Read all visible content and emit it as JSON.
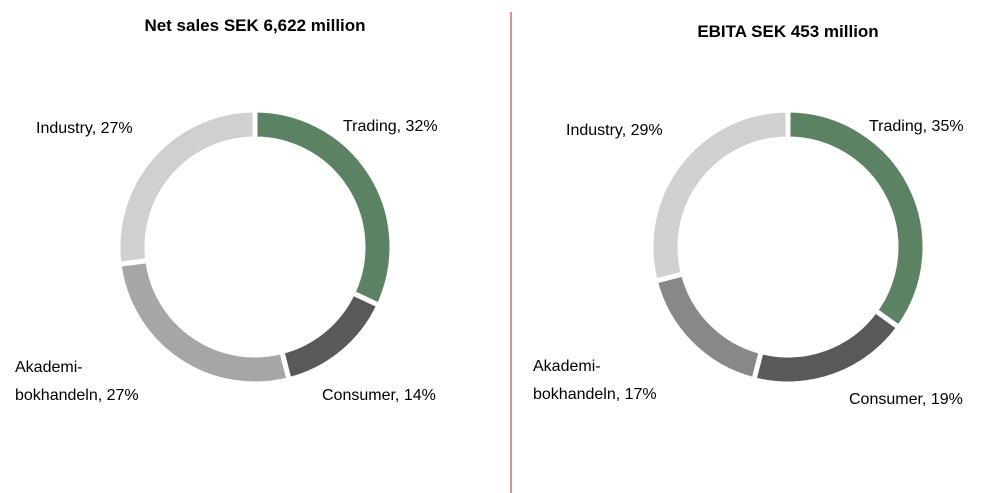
{
  "chart_data": [
    {
      "type": "donut",
      "title": "Net sales SEK 6,622 million",
      "values": [
        32,
        14,
        27,
        27
      ],
      "value_labels": [
        [
          "Trading, 32%"
        ],
        [
          "Consumer, 14%"
        ],
        [
          "Akademi-",
          "bokhandeln, 27%"
        ],
        [
          "Industry, 27%"
        ]
      ],
      "colors": [
        "#5b8263",
        "#595959",
        "#a6a6a6",
        "#d0d0d0"
      ]
    },
    {
      "type": "donut",
      "title": "EBITA SEK 453 million",
      "values": [
        35,
        19,
        17,
        29
      ],
      "value_labels": [
        [
          "Trading, 35%"
        ],
        [
          "Consumer, 19%"
        ],
        [
          "Akademi-",
          "bokhandeln, 17%"
        ],
        [
          "Industry, 29%"
        ]
      ],
      "colors": [
        "#5b8263",
        "#595959",
        "#888888",
        "#d0d0d0"
      ]
    }
  ]
}
